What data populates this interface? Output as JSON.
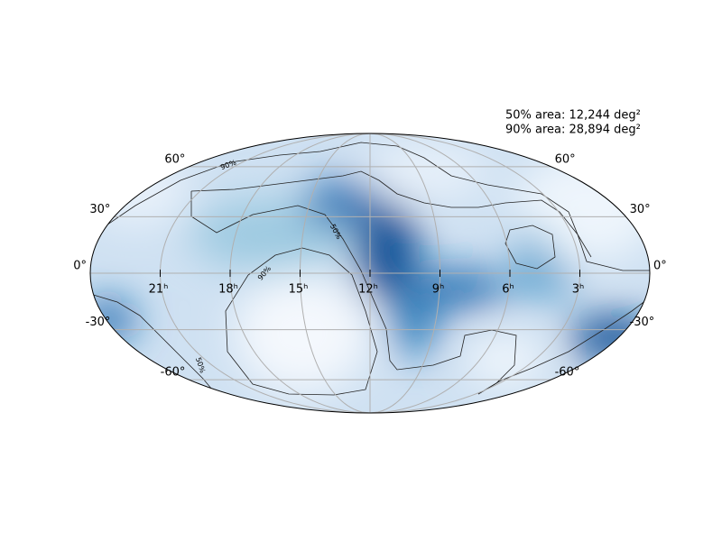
{
  "chart_data": {
    "type": "skymap",
    "annotations": [
      "50% area: 12,244 deg²",
      "90% area: 28,894 deg²"
    ],
    "lat_ticks": [
      {
        "value": 60,
        "label": "60°"
      },
      {
        "value": 30,
        "label": "30°"
      },
      {
        "value": 0,
        "label": "0°"
      },
      {
        "value": -30,
        "label": "-30°"
      },
      {
        "value": -60,
        "label": "-60°"
      }
    ],
    "ra_ticks": [
      {
        "value": 21,
        "label": "21ʰ"
      },
      {
        "value": 18,
        "label": "18ʰ"
      },
      {
        "value": 15,
        "label": "15ʰ"
      },
      {
        "value": 12,
        "label": "12ʰ"
      },
      {
        "value": 9,
        "label": "9ʰ"
      },
      {
        "value": 6,
        "label": "6ʰ"
      },
      {
        "value": 3,
        "label": "3ʰ"
      }
    ],
    "contour_labels": [
      "90%",
      "50%",
      "90%",
      "50%"
    ],
    "grid": true
  }
}
